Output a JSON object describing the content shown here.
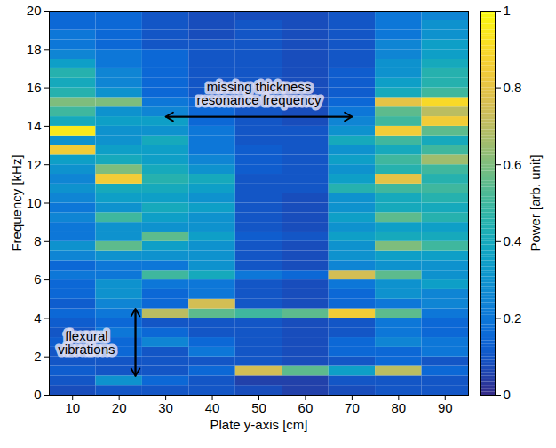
{
  "chart_data": {
    "type": "heatmap",
    "xlabel": "Plate y-axis [cm]",
    "ylabel": "Frequency [kHz]",
    "xlim": [
      5,
      95
    ],
    "xticks": [
      10,
      20,
      30,
      40,
      50,
      60,
      70,
      80,
      90
    ],
    "ylim": [
      0,
      20
    ],
    "yticks": [
      0,
      2,
      4,
      6,
      8,
      10,
      12,
      14,
      16,
      18,
      20
    ],
    "x_bins": [
      5,
      15,
      25,
      35,
      45,
      55,
      65,
      75,
      85,
      95
    ],
    "y_bins": [
      0,
      0.5,
      1,
      1.5,
      2,
      2.5,
      3,
      3.5,
      4,
      4.5,
      5,
      5.5,
      6,
      6.5,
      7,
      7.5,
      8,
      8.5,
      9,
      9.5,
      10,
      10.5,
      11,
      11.5,
      12,
      12.5,
      13,
      13.5,
      14,
      14.5,
      15,
      15.5,
      16,
      16.5,
      17,
      17.5,
      18,
      18.5,
      19,
      19.5,
      20
    ],
    "power": [
      [
        0.08,
        0.1,
        0.12,
        0.1,
        0.1,
        0.12,
        0.1,
        0.12,
        0.15,
        0.12,
        0.15,
        0.15,
        0.2,
        0.15,
        0.25,
        0.3,
        0.2,
        0.2,
        0.25,
        0.2,
        0.25,
        0.3,
        0.25,
        0.3,
        0.35,
        0.85,
        0.3,
        0.95,
        0.4,
        0.5,
        0.6,
        0.45,
        0.4,
        0.45,
        0.35,
        0.25,
        0.2,
        0.2,
        0.15,
        0.15
      ],
      [
        0.1,
        0.3,
        0.1,
        0.1,
        0.15,
        0.15,
        0.2,
        0.15,
        0.2,
        0.25,
        0.3,
        0.3,
        0.2,
        0.2,
        0.3,
        0.55,
        0.3,
        0.3,
        0.5,
        0.3,
        0.35,
        0.4,
        0.85,
        0.6,
        0.4,
        0.35,
        0.3,
        0.3,
        0.35,
        0.3,
        0.6,
        0.3,
        0.25,
        0.25,
        0.2,
        0.2,
        0.15,
        0.15,
        0.15,
        0.15
      ],
      [
        0.1,
        0.15,
        0.1,
        0.1,
        0.1,
        0.25,
        0.15,
        0.1,
        0.7,
        0.15,
        0.15,
        0.2,
        0.5,
        0.2,
        0.3,
        0.35,
        0.55,
        0.3,
        0.35,
        0.4,
        0.35,
        0.4,
        0.45,
        0.4,
        0.35,
        0.35,
        0.4,
        0.3,
        0.35,
        0.25,
        0.2,
        0.15,
        0.15,
        0.15,
        0.15,
        0.15,
        0.1,
        0.1,
        0.1,
        0.1
      ],
      [
        0.1,
        0.1,
        0.15,
        0.1,
        0.2,
        0.15,
        0.1,
        0.1,
        0.55,
        0.75,
        0.2,
        0.2,
        0.4,
        0.3,
        0.3,
        0.3,
        0.35,
        0.3,
        0.3,
        0.35,
        0.3,
        0.35,
        0.4,
        0.3,
        0.25,
        0.2,
        0.2,
        0.2,
        0.15,
        0.15,
        0.15,
        0.1,
        0.1,
        0.1,
        0.1,
        0.1,
        0.1,
        0.08,
        0.08,
        0.08
      ],
      [
        0.08,
        0.05,
        0.75,
        0.1,
        0.1,
        0.1,
        0.1,
        0.1,
        0.5,
        0.1,
        0.1,
        0.1,
        0.2,
        0.1,
        0.1,
        0.1,
        0.12,
        0.1,
        0.1,
        0.1,
        0.1,
        0.1,
        0.1,
        0.12,
        0.12,
        0.12,
        0.1,
        0.1,
        0.1,
        0.1,
        0.1,
        0.1,
        0.1,
        0.1,
        0.1,
        0.1,
        0.1,
        0.1,
        0.1,
        0.08
      ],
      [
        0.05,
        0.05,
        0.55,
        0.08,
        0.08,
        0.08,
        0.08,
        0.08,
        0.55,
        0.08,
        0.08,
        0.08,
        0.15,
        0.08,
        0.08,
        0.08,
        0.1,
        0.08,
        0.08,
        0.08,
        0.08,
        0.1,
        0.1,
        0.1,
        0.1,
        0.1,
        0.1,
        0.1,
        0.08,
        0.08,
        0.08,
        0.08,
        0.08,
        0.08,
        0.08,
        0.08,
        0.08,
        0.08,
        0.08,
        0.08
      ],
      [
        0.08,
        0.1,
        0.35,
        0.1,
        0.15,
        0.15,
        0.1,
        0.1,
        0.85,
        0.15,
        0.15,
        0.2,
        0.75,
        0.25,
        0.3,
        0.3,
        0.35,
        0.3,
        0.35,
        0.3,
        0.3,
        0.45,
        0.35,
        0.3,
        0.35,
        0.3,
        0.4,
        0.3,
        0.25,
        0.2,
        0.15,
        0.12,
        0.12,
        0.12,
        0.1,
        0.1,
        0.1,
        0.1,
        0.1,
        0.1
      ],
      [
        0.1,
        0.1,
        0.7,
        0.15,
        0.15,
        0.25,
        0.2,
        0.2,
        0.55,
        0.2,
        0.3,
        0.3,
        0.55,
        0.3,
        0.35,
        0.6,
        0.4,
        0.35,
        0.55,
        0.4,
        0.4,
        0.5,
        0.8,
        0.45,
        0.5,
        0.4,
        0.5,
        0.85,
        0.5,
        0.55,
        0.8,
        0.4,
        0.35,
        0.3,
        0.3,
        0.25,
        0.25,
        0.2,
        0.2,
        0.2
      ],
      [
        0.1,
        0.1,
        0.15,
        0.1,
        0.2,
        0.2,
        0.15,
        0.15,
        0.2,
        0.25,
        0.25,
        0.35,
        0.3,
        0.3,
        0.35,
        0.5,
        0.4,
        0.35,
        0.45,
        0.4,
        0.45,
        0.5,
        0.45,
        0.5,
        0.65,
        0.5,
        0.4,
        0.55,
        0.85,
        0.7,
        0.9,
        0.5,
        0.45,
        0.45,
        0.4,
        0.35,
        0.35,
        0.3,
        0.3,
        0.25
      ]
    ],
    "colorbar": {
      "label": "Power [arb. unit]",
      "range": [
        0,
        1
      ],
      "ticks": [
        0,
        0.2,
        0.4,
        0.6,
        0.8,
        1
      ]
    },
    "annotations": [
      {
        "text": "missing thickness\nresonance frequency",
        "x": 50,
        "y": 15.7,
        "arrow": {
          "x1": 30,
          "y1": 14.5,
          "x2": 70,
          "y2": 14.5
        }
      },
      {
        "text": "flexural\nvibrations",
        "x": 13,
        "y": 2.7,
        "arrow": {
          "x1": 23.5,
          "y1": 1,
          "x2": 23.5,
          "y2": 4.5
        }
      }
    ]
  }
}
